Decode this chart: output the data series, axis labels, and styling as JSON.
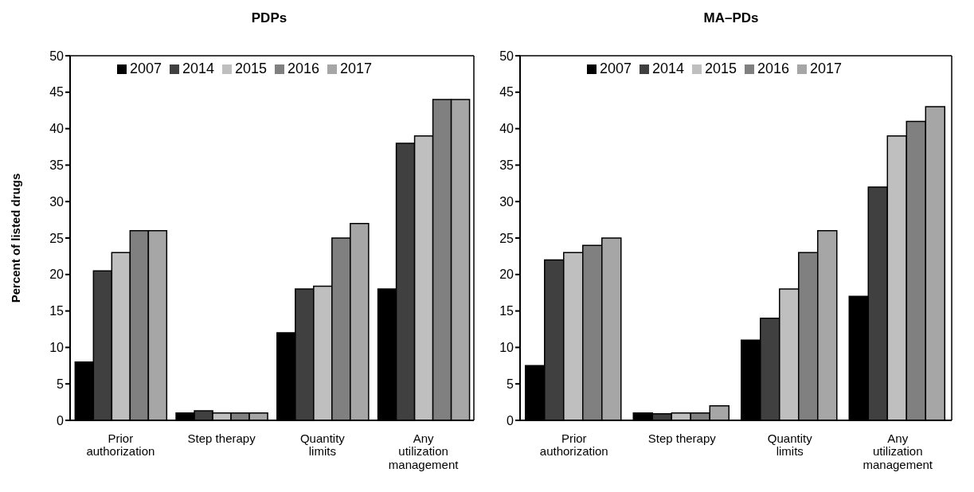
{
  "chart_data": [
    {
      "type": "bar",
      "title": "PDPs",
      "ylabel": "Percent of listed drugs",
      "categories": [
        "Prior authorization",
        "Step therapy",
        "Quantity limits",
        "Any utilization management"
      ],
      "ylim": [
        0,
        50
      ],
      "yticks": [
        0,
        5,
        10,
        15,
        20,
        25,
        30,
        35,
        40,
        45,
        50
      ],
      "grid": false,
      "legend": "top",
      "series": [
        {
          "name": "2007",
          "color": "#000000",
          "values": [
            8,
            1,
            12,
            18
          ]
        },
        {
          "name": "2014",
          "color": "#404040",
          "values": [
            20.5,
            1.3,
            18,
            38
          ]
        },
        {
          "name": "2015",
          "color": "#bfbfbf",
          "values": [
            23,
            1,
            18.4,
            39
          ]
        },
        {
          "name": "2016",
          "color": "#808080",
          "values": [
            26,
            1,
            25,
            44
          ]
        },
        {
          "name": "2017",
          "color": "#a6a6a6",
          "values": [
            26,
            1,
            27,
            44
          ]
        }
      ]
    },
    {
      "type": "bar",
      "title": "MA–PDs",
      "categories": [
        "Prior authorization",
        "Step therapy",
        "Quantity limits",
        "Any utilization management"
      ],
      "ylim": [
        0,
        50
      ],
      "yticks": [
        0,
        5,
        10,
        15,
        20,
        25,
        30,
        35,
        40,
        45,
        50
      ],
      "grid": false,
      "legend": "top",
      "series": [
        {
          "name": "2007",
          "color": "#000000",
          "values": [
            7.5,
            1,
            11,
            17
          ]
        },
        {
          "name": "2014",
          "color": "#404040",
          "values": [
            22,
            0.9,
            14,
            32
          ]
        },
        {
          "name": "2015",
          "color": "#bfbfbf",
          "values": [
            23,
            1,
            18,
            39
          ]
        },
        {
          "name": "2016",
          "color": "#808080",
          "values": [
            24,
            1,
            23,
            41
          ]
        },
        {
          "name": "2017",
          "color": "#a6a6a6",
          "values": [
            25,
            2,
            26,
            43
          ]
        }
      ]
    }
  ]
}
